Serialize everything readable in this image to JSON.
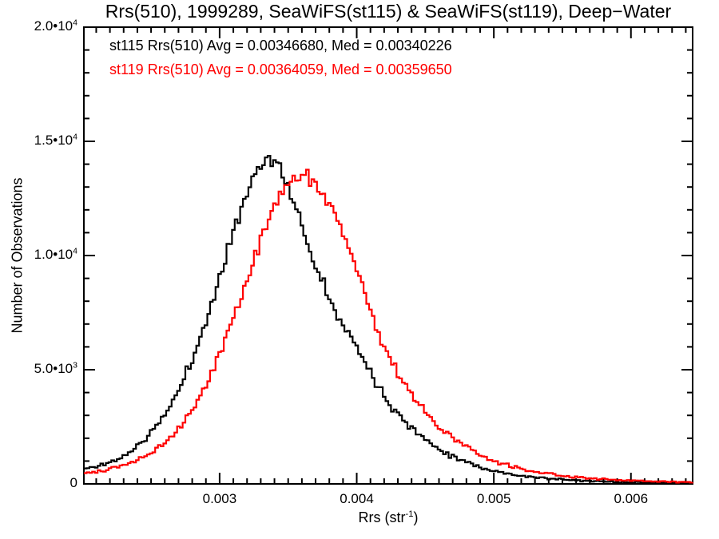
{
  "title": "Rrs(510), 1999289, SeaWiFS(st115) & SeaWiFS(st119), Deep−Water",
  "chart_data": {
    "type": "line",
    "subtype": "step-histogram",
    "title": "Rrs(510), 1999289, SeaWiFS(st115) & SeaWiFS(st119), Deep−Water",
    "xlabel": "Rrs (str^-1)",
    "xlabel_parts": {
      "pre": "Rrs (str",
      "sup": "-1",
      "post": ")"
    },
    "ylabel": "Number of Observations",
    "xlim": [
      0.00201,
      0.00645
    ],
    "ylim": [
      0,
      20000
    ],
    "grid": false,
    "legend_position": "top-left-inside",
    "xticks": [
      {
        "v": 0.003,
        "label": "0.003"
      },
      {
        "v": 0.004,
        "label": "0.004"
      },
      {
        "v": 0.005,
        "label": "0.005"
      },
      {
        "v": 0.006,
        "label": "0.006"
      }
    ],
    "yticks": [
      {
        "v": 0,
        "mant": "0",
        "exp": ""
      },
      {
        "v": 5000,
        "mant": "5.0•10",
        "exp": "3"
      },
      {
        "v": 10000,
        "mant": "1.0•10",
        "exp": "4"
      },
      {
        "v": 15000,
        "mant": "1.5•10",
        "exp": "4"
      },
      {
        "v": 20000,
        "mant": "2.0•10",
        "exp": "4"
      }
    ],
    "x_minor_step": 0.0001,
    "y_minor_step": 1000,
    "render": {
      "bin_width": 2e-05,
      "noise_seed": 11,
      "noise_scale": 5
    },
    "series": [
      {
        "name": "st115",
        "color": "#000000",
        "legend": "st115 Rrs(510) Avg = 0.00346680, Med = 0.00340226",
        "avg": 0.0034668,
        "med": 0.00340226,
        "points": [
          [
            0.002,
            650
          ],
          [
            0.0021,
            780
          ],
          [
            0.0022,
            950
          ],
          [
            0.0023,
            1250
          ],
          [
            0.0024,
            1700
          ],
          [
            0.0025,
            2300
          ],
          [
            0.0026,
            3100
          ],
          [
            0.0027,
            4200
          ],
          [
            0.0028,
            5600
          ],
          [
            0.0029,
            7300
          ],
          [
            0.003,
            9200
          ],
          [
            0.0031,
            11200
          ],
          [
            0.0032,
            13000
          ],
          [
            0.0033,
            14200
          ],
          [
            0.0034,
            14100
          ],
          [
            0.0035,
            12900
          ],
          [
            0.0036,
            11100
          ],
          [
            0.0037,
            9400
          ],
          [
            0.0038,
            8100
          ],
          [
            0.0039,
            6900
          ],
          [
            0.004,
            5900
          ],
          [
            0.0041,
            4800
          ],
          [
            0.0042,
            3800
          ],
          [
            0.0043,
            3000
          ],
          [
            0.0044,
            2400
          ],
          [
            0.0045,
            1900
          ],
          [
            0.0046,
            1500
          ],
          [
            0.0047,
            1200
          ],
          [
            0.0048,
            950
          ],
          [
            0.0049,
            720
          ],
          [
            0.005,
            550
          ],
          [
            0.0051,
            440
          ],
          [
            0.0052,
            355
          ],
          [
            0.0053,
            285
          ],
          [
            0.0054,
            230
          ],
          [
            0.0055,
            185
          ],
          [
            0.0056,
            150
          ],
          [
            0.0057,
            125
          ],
          [
            0.0058,
            103
          ],
          [
            0.0059,
            86
          ],
          [
            0.006,
            72
          ],
          [
            0.0061,
            61
          ],
          [
            0.0062,
            52
          ],
          [
            0.0063,
            45
          ],
          [
            0.0064,
            40
          ],
          [
            0.00645,
            38
          ]
        ]
      },
      {
        "name": "st119",
        "color": "#ff0000",
        "legend": "st119 Rrs(510) Avg = 0.00364059, Med = 0.00359650",
        "avg": 0.00364059,
        "med": 0.0035965,
        "points": [
          [
            0.002,
            470
          ],
          [
            0.0021,
            560
          ],
          [
            0.0022,
            680
          ],
          [
            0.0023,
            850
          ],
          [
            0.0024,
            1080
          ],
          [
            0.0025,
            1400
          ],
          [
            0.0026,
            1850
          ],
          [
            0.0027,
            2450
          ],
          [
            0.0028,
            3300
          ],
          [
            0.0029,
            4400
          ],
          [
            0.003,
            5800
          ],
          [
            0.0031,
            7400
          ],
          [
            0.0032,
            9100
          ],
          [
            0.0033,
            10800
          ],
          [
            0.0034,
            12300
          ],
          [
            0.0035,
            13300
          ],
          [
            0.0036,
            13550
          ],
          [
            0.0037,
            13200
          ],
          [
            0.0038,
            12200
          ],
          [
            0.0039,
            10800
          ],
          [
            0.004,
            9300
          ],
          [
            0.0041,
            7500
          ],
          [
            0.0042,
            5900
          ],
          [
            0.0043,
            4750
          ],
          [
            0.0044,
            3800
          ],
          [
            0.0045,
            3050
          ],
          [
            0.0046,
            2450
          ],
          [
            0.0047,
            1950
          ],
          [
            0.0048,
            1550
          ],
          [
            0.0049,
            1220
          ],
          [
            0.005,
            960
          ],
          [
            0.0051,
            770
          ],
          [
            0.0052,
            620
          ],
          [
            0.0053,
            505
          ],
          [
            0.0054,
            415
          ],
          [
            0.0055,
            345
          ],
          [
            0.0056,
            290
          ],
          [
            0.0057,
            242
          ],
          [
            0.0058,
            202
          ],
          [
            0.0059,
            170
          ],
          [
            0.006,
            143
          ],
          [
            0.0061,
            122
          ],
          [
            0.0062,
            104
          ],
          [
            0.0063,
            90
          ],
          [
            0.0064,
            79
          ],
          [
            0.00645,
            74
          ]
        ]
      }
    ]
  }
}
